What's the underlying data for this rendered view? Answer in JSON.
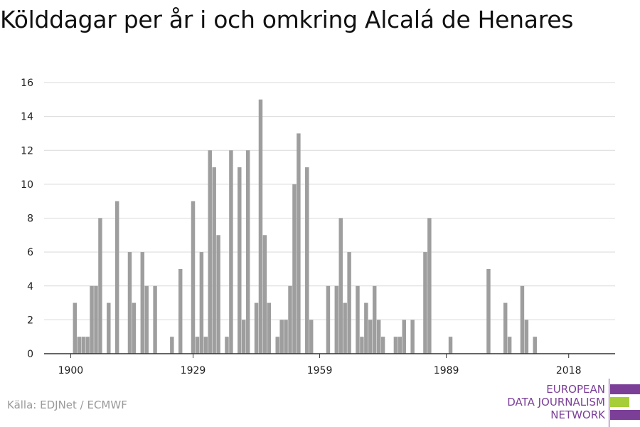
{
  "title": "Kölddagar per år i och omkring Alcalá de Henares",
  "source": "Källa: EDJNet / ECMWF",
  "logo": {
    "line1": "EUROPEAN",
    "line2": "DATA JOURNALISM",
    "line3": "NETWORK",
    "primary_color": "#7b3f98",
    "accent_color": "#a6ce39"
  },
  "colors": {
    "bar": "#9e9e9e",
    "grid": "#d9d9d9",
    "axis": "#333333",
    "text": "#222222"
  },
  "chart_data": {
    "type": "bar",
    "title": "Kölddagar per år i och omkring Alcalá de Henares",
    "xlabel": "",
    "ylabel": "",
    "ylim": [
      0,
      16
    ],
    "yticks": [
      0,
      2,
      4,
      6,
      8,
      10,
      12,
      14,
      16
    ],
    "xticks": [
      1900,
      1929,
      1959,
      1989,
      2018
    ],
    "grid": true,
    "x": [
      1900,
      1901,
      1902,
      1903,
      1904,
      1905,
      1906,
      1907,
      1908,
      1909,
      1910,
      1911,
      1912,
      1913,
      1914,
      1915,
      1916,
      1917,
      1918,
      1919,
      1920,
      1921,
      1922,
      1923,
      1924,
      1925,
      1926,
      1927,
      1928,
      1929,
      1930,
      1931,
      1932,
      1933,
      1934,
      1935,
      1936,
      1937,
      1938,
      1939,
      1940,
      1941,
      1942,
      1943,
      1944,
      1945,
      1946,
      1947,
      1948,
      1949,
      1950,
      1951,
      1952,
      1953,
      1954,
      1955,
      1956,
      1957,
      1958,
      1959,
      1960,
      1961,
      1962,
      1963,
      1964,
      1965,
      1966,
      1967,
      1968,
      1969,
      1970,
      1971,
      1972,
      1973,
      1974,
      1975,
      1976,
      1977,
      1978,
      1979,
      1980,
      1981,
      1982,
      1983,
      1984,
      1985,
      1986,
      1987,
      1988,
      1989,
      1990,
      1991,
      1992,
      1993,
      1994,
      1995,
      1996,
      1997,
      1998,
      1999,
      2000,
      2001,
      2002,
      2003,
      2004,
      2005,
      2006,
      2007,
      2008,
      2009,
      2010,
      2011,
      2012,
      2013,
      2014,
      2015,
      2016,
      2017,
      2018
    ],
    "values": [
      0,
      3,
      1,
      1,
      1,
      4,
      4,
      8,
      0,
      3,
      0,
      9,
      0,
      0,
      6,
      3,
      0,
      6,
      4,
      0,
      4,
      0,
      0,
      0,
      1,
      0,
      5,
      0,
      0,
      9,
      1,
      6,
      1,
      12,
      11,
      7,
      0,
      1,
      12,
      0,
      11,
      2,
      12,
      0,
      3,
      15,
      7,
      3,
      0,
      1,
      2,
      2,
      4,
      10,
      13,
      0,
      11,
      2,
      0,
      0,
      0,
      4,
      0,
      4,
      8,
      3,
      6,
      0,
      4,
      1,
      3,
      2,
      4,
      2,
      1,
      0,
      0,
      1,
      1,
      2,
      0,
      2,
      0,
      0,
      6,
      8,
      0,
      0,
      0,
      0,
      1,
      0,
      0,
      0,
      0,
      0,
      0,
      0,
      0,
      5,
      0,
      0,
      0,
      3,
      1,
      0,
      0,
      4,
      2,
      0,
      1,
      0,
      0,
      0,
      0,
      0,
      0,
      0,
      0
    ]
  }
}
